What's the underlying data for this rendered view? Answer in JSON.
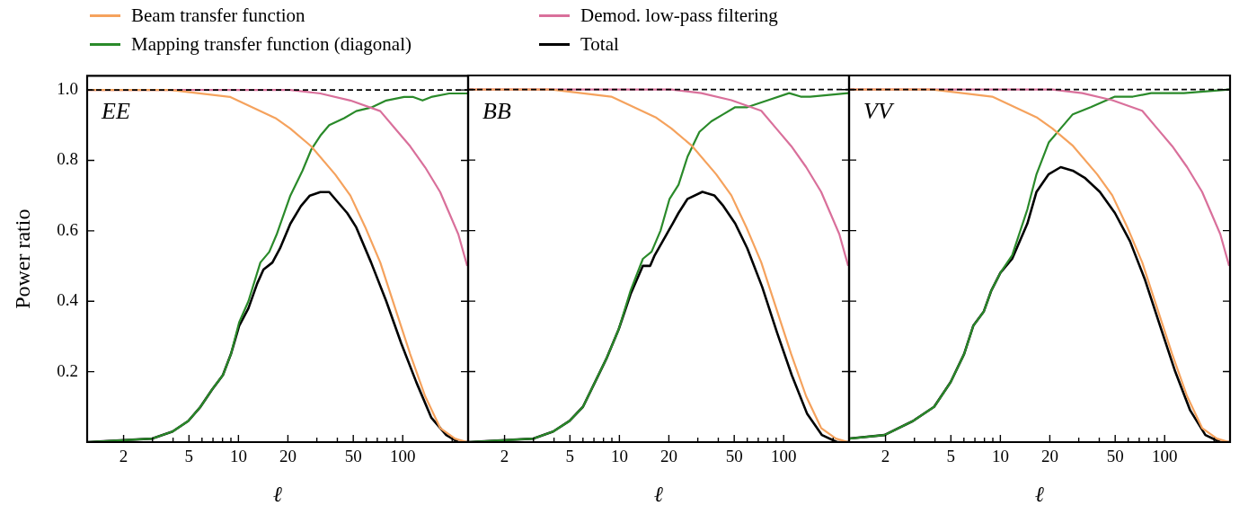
{
  "chart_data": [
    {
      "type": "line",
      "ylabel": "Power ratio",
      "xlabel": "ℓ",
      "annotations": [
        "EE"
      ],
      "log": "x",
      "legend": "top",
      "xlim": [
        1.2,
        250
      ],
      "ylim": [
        0,
        1.04
      ],
      "xticks": [
        2,
        {
          "value": 3,
          "label": null
        },
        {
          "value": 4,
          "label": null
        },
        5,
        {
          "value": 6,
          "label": null
        },
        {
          "value": 7,
          "label": null
        },
        {
          "value": 8,
          "label": null
        },
        {
          "value": 9,
          "label": null
        },
        10,
        20,
        {
          "value": 30,
          "label": null
        },
        {
          "value": 40,
          "label": null
        },
        50,
        {
          "value": 60,
          "label": null
        },
        {
          "value": 70,
          "label": null
        },
        {
          "value": 80,
          "label": null
        },
        {
          "value": 90,
          "label": null
        },
        100,
        {
          "value": 200,
          "label": null
        }
      ],
      "yticks": [
        0.2,
        0.4,
        0.6,
        0.8,
        {
          "value": 1,
          "label": "1.0"
        }
      ],
      "ref_lines": [
        {
          "axis": "y",
          "value": 1,
          "color": "#000000",
          "line_style": "dashed"
        }
      ],
      "series": [
        {
          "name": "Beam transfer function",
          "color": "#f5a25d",
          "x": [
            1.2,
            2,
            3.86,
            8.93,
            16.8,
            20.7,
            27.7,
            38.8,
            48,
            59.2,
            73,
            90,
            111,
            137,
            169,
            208,
            247
          ],
          "values": [
            1,
            1,
            1,
            0.98,
            0.92,
            0.89,
            0.84,
            0.76,
            0.7,
            0.61,
            0.51,
            0.38,
            0.25,
            0.13,
            0.04,
            0.01,
            0
          ]
        },
        {
          "name": "Demod. low-pass filtering",
          "color": "#d9709b",
          "x": [
            1.2,
            20.7,
            31.5,
            48,
            73,
            90,
            111,
            137,
            169,
            192,
            218,
            247
          ],
          "values": [
            1,
            1,
            0.99,
            0.97,
            0.94,
            0.89,
            0.84,
            0.78,
            0.71,
            0.65,
            0.59,
            0.5
          ]
        },
        {
          "name": "Mapping transfer function (diagonal)",
          "color": "#2a8a2a",
          "x": [
            1.2,
            2.99,
            3.97,
            4.95,
            5.87,
            6.93,
            8.04,
            9.0,
            10.1,
            11.5,
            13.6,
            15.4,
            17.1,
            20.7,
            24.5,
            27.7,
            31.5,
            35.7,
            44,
            52.1,
            64.2,
            79.4,
            102,
            116,
            132,
            149,
            192,
            247
          ],
          "values": [
            0,
            0.01,
            0.03,
            0.06,
            0.1,
            0.15,
            0.19,
            0.25,
            0.34,
            0.4,
            0.51,
            0.54,
            0.59,
            0.7,
            0.77,
            0.83,
            0.87,
            0.9,
            0.92,
            0.94,
            0.95,
            0.97,
            0.98,
            0.98,
            0.97,
            0.98,
            0.99,
            0.99
          ]
        },
        {
          "name": "Total",
          "color": "#000000",
          "x": [
            1.2,
            2.99,
            3.97,
            4.95,
            5.87,
            6.93,
            8.04,
            9.0,
            10.1,
            11.5,
            13.0,
            14.2,
            16.1,
            17.9,
            20.7,
            24.0,
            27.2,
            31.5,
            35.7,
            40.5,
            46,
            52.1,
            64.2,
            79.4,
            98,
            121,
            149,
            184,
            218,
            247
          ],
          "values": [
            0,
            0.01,
            0.03,
            0.06,
            0.1,
            0.15,
            0.19,
            0.25,
            0.33,
            0.38,
            0.45,
            0.49,
            0.51,
            0.55,
            0.62,
            0.67,
            0.7,
            0.71,
            0.71,
            0.68,
            0.65,
            0.61,
            0.51,
            0.4,
            0.28,
            0.17,
            0.07,
            0.02,
            0,
            0
          ]
        }
      ]
    },
    {
      "type": "line",
      "xlabel": "ℓ",
      "annotations": [
        "BB"
      ],
      "log": "x",
      "tick_labels": "x",
      "xlim": [
        1.2,
        250
      ],
      "ylim": [
        0,
        1.04
      ],
      "xticks": [
        2,
        {
          "value": 3,
          "label": null
        },
        {
          "value": 4,
          "label": null
        },
        5,
        {
          "value": 6,
          "label": null
        },
        {
          "value": 7,
          "label": null
        },
        {
          "value": 8,
          "label": null
        },
        {
          "value": 9,
          "label": null
        },
        10,
        20,
        {
          "value": 30,
          "label": null
        },
        {
          "value": 40,
          "label": null
        },
        50,
        {
          "value": 60,
          "label": null
        },
        {
          "value": 70,
          "label": null
        },
        {
          "value": 80,
          "label": null
        },
        {
          "value": 90,
          "label": null
        },
        100,
        {
          "value": 200,
          "label": null
        }
      ],
      "yticks": [
        0.2,
        0.4,
        0.6,
        0.8,
        1
      ],
      "ref_lines": [
        {
          "axis": "y",
          "value": 1,
          "color": "#000000",
          "line_style": "dashed"
        }
      ],
      "series": [
        {
          "color": "#f5a25d",
          "x": [
            1.2,
            2,
            3.86,
            8.93,
            16.8,
            20.7,
            27.7,
            38.8,
            48,
            59.2,
            73,
            90,
            111,
            137,
            169,
            208,
            247
          ],
          "values": [
            1,
            1,
            1,
            0.98,
            0.92,
            0.89,
            0.84,
            0.76,
            0.7,
            0.61,
            0.51,
            0.38,
            0.25,
            0.13,
            0.04,
            0.01,
            0
          ]
        },
        {
          "color": "#d9709b",
          "x": [
            1.2,
            20.7,
            31.5,
            48,
            73,
            90,
            111,
            137,
            169,
            192,
            218,
            247
          ],
          "values": [
            1,
            1,
            0.99,
            0.97,
            0.94,
            0.89,
            0.84,
            0.78,
            0.71,
            0.65,
            0.59,
            0.5
          ]
        },
        {
          "color": "#2a8a2a",
          "x": [
            1.2,
            3.0,
            3.95,
            4.97,
            6.0,
            7.1,
            8.4,
            9.9,
            11.7,
            13.9,
            15.7,
            17.8,
            20.2,
            22.9,
            26,
            30.7,
            36.3,
            42.9,
            50.7,
            60,
            80.3,
            108,
            127,
            145,
            247
          ],
          "values": [
            0,
            0.01,
            0.03,
            0.06,
            0.1,
            0.17,
            0.24,
            0.32,
            0.43,
            0.52,
            0.54,
            0.6,
            0.69,
            0.73,
            0.81,
            0.88,
            0.91,
            0.93,
            0.95,
            0.95,
            0.97,
            0.99,
            0.98,
            0.98,
            0.99
          ]
        },
        {
          "color": "#000000",
          "x": [
            1.2,
            3.0,
            3.95,
            4.97,
            6.0,
            7.1,
            8.4,
            9.9,
            11.7,
            13.9,
            15.4,
            16.4,
            19.4,
            21.1,
            22.9,
            26,
            32,
            37.8,
            42.9,
            50.7,
            60,
            74,
            91.2,
            112,
            139,
            171,
            211,
            247
          ],
          "values": [
            0,
            0.01,
            0.03,
            0.06,
            0.1,
            0.17,
            0.24,
            0.32,
            0.42,
            0.5,
            0.5,
            0.53,
            0.59,
            0.62,
            0.65,
            0.69,
            0.71,
            0.7,
            0.67,
            0.62,
            0.55,
            0.44,
            0.31,
            0.19,
            0.08,
            0.02,
            0,
            0
          ]
        }
      ]
    },
    {
      "type": "line",
      "xlabel": "ℓ",
      "annotations": [
        "VV"
      ],
      "log": "x",
      "tick_labels": "x",
      "xlim": [
        1.2,
        250
      ],
      "ylim": [
        0,
        1.04
      ],
      "xticks": [
        2,
        {
          "value": 3,
          "label": null
        },
        {
          "value": 4,
          "label": null
        },
        5,
        {
          "value": 6,
          "label": null
        },
        {
          "value": 7,
          "label": null
        },
        {
          "value": 8,
          "label": null
        },
        {
          "value": 9,
          "label": null
        },
        10,
        20,
        {
          "value": 30,
          "label": null
        },
        {
          "value": 40,
          "label": null
        },
        50,
        {
          "value": 60,
          "label": null
        },
        {
          "value": 70,
          "label": null
        },
        {
          "value": 80,
          "label": null
        },
        {
          "value": 90,
          "label": null
        },
        100,
        {
          "value": 200,
          "label": null
        }
      ],
      "yticks": [
        0.2,
        0.4,
        0.6,
        0.8,
        1
      ],
      "ref_lines": [
        {
          "axis": "y",
          "value": 1,
          "color": "#000000",
          "line_style": "dashed"
        }
      ],
      "series": [
        {
          "color": "#f5a25d",
          "x": [
            1.2,
            2,
            3.86,
            8.93,
            16.8,
            20.7,
            27.7,
            38.8,
            48,
            59.2,
            73,
            90,
            111,
            137,
            169,
            208,
            247
          ],
          "values": [
            1,
            1,
            1,
            0.98,
            0.92,
            0.89,
            0.84,
            0.76,
            0.7,
            0.61,
            0.51,
            0.38,
            0.25,
            0.13,
            0.04,
            0.01,
            0
          ]
        },
        {
          "color": "#d9709b",
          "x": [
            1.2,
            20.7,
            31.5,
            48,
            73,
            90,
            111,
            137,
            169,
            192,
            218,
            247
          ],
          "values": [
            1,
            1,
            0.99,
            0.97,
            0.94,
            0.89,
            0.84,
            0.78,
            0.71,
            0.65,
            0.59,
            0.5
          ]
        },
        {
          "color": "#2a8a2a",
          "x": [
            1.2,
            1.97,
            2.94,
            3.95,
            4.98,
            6.02,
            6.84,
            7.92,
            8.81,
            10,
            11.8,
            14.6,
            16.6,
            19.7,
            23.3,
            27.6,
            35.5,
            49.8,
            64.1,
            82.6,
            116,
            131,
            247
          ],
          "values": [
            0.01,
            0.02,
            0.06,
            0.1,
            0.17,
            0.25,
            0.33,
            0.37,
            0.43,
            0.48,
            0.53,
            0.66,
            0.76,
            0.85,
            0.89,
            0.93,
            0.95,
            0.98,
            0.98,
            0.99,
            0.99,
            0.99,
            1.0
          ]
        },
        {
          "color": "#000000",
          "x": [
            1.2,
            1.97,
            2.94,
            3.95,
            4.98,
            6.02,
            6.84,
            7.92,
            8.81,
            10,
            11.8,
            14.6,
            16.6,
            19.7,
            23.3,
            27.6,
            32.6,
            40.3,
            49.8,
            61.5,
            76,
            93.8,
            116,
            143,
            177,
            218,
            247
          ],
          "values": [
            0.01,
            0.02,
            0.06,
            0.1,
            0.17,
            0.25,
            0.33,
            0.37,
            0.43,
            0.48,
            0.52,
            0.62,
            0.71,
            0.76,
            0.78,
            0.77,
            0.75,
            0.71,
            0.65,
            0.57,
            0.46,
            0.33,
            0.2,
            0.09,
            0.02,
            0,
            0
          ]
        }
      ]
    }
  ]
}
